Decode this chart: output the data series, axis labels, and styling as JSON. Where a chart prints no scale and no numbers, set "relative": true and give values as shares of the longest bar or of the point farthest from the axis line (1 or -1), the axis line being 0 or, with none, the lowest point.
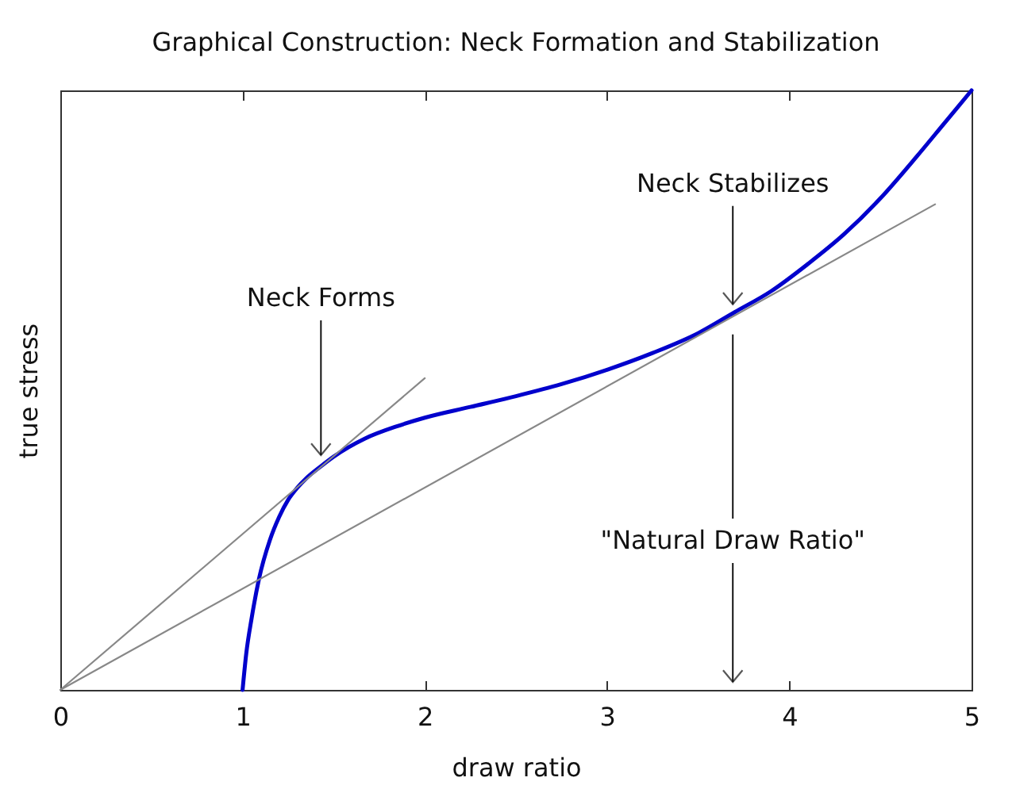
{
  "chart_data": {
    "type": "line",
    "title": "Graphical Construction: Neck Formation and Stabilization",
    "xlabel": "draw ratio",
    "ylabel": "true stress",
    "relative": true,
    "xlim": [
      0,
      5
    ],
    "xticks": [
      0,
      1,
      2,
      3,
      4,
      5
    ],
    "series": [
      {
        "color": "#0000cc",
        "x": [
          1.0,
          1.02,
          1.05,
          1.09,
          1.15,
          1.2,
          1.25,
          1.3,
          1.35,
          1.43,
          1.5,
          1.67,
          1.85,
          2.0,
          2.25,
          2.5,
          2.75,
          3.0,
          3.25,
          3.5,
          3.7,
          3.9,
          4.1,
          4.3,
          4.5,
          4.7,
          4.85,
          5.0
        ],
        "values": [
          0,
          0.06,
          0.12,
          0.185,
          0.25,
          0.288,
          0.317,
          0.337,
          0.353,
          0.373,
          0.389,
          0.419,
          0.44,
          0.454,
          0.472,
          0.49,
          0.51,
          0.534,
          0.562,
          0.595,
          0.63,
          0.665,
          0.71,
          0.76,
          0.82,
          0.89,
          0.945,
          1.0
        ]
      },
      {
        "color": "#888888",
        "x": [
          0,
          2
        ],
        "values": [
          0,
          0.52
        ]
      },
      {
        "color": "#888888",
        "x": [
          0,
          4.8
        ],
        "values": [
          0,
          0.81
        ]
      }
    ],
    "annotations": [
      {
        "text": "Neck Forms",
        "x": 1.43,
        "y": 0.373
      },
      {
        "text": "Neck Stabilizes",
        "x": 3.69,
        "y": 0.63
      },
      "\"Natural Draw Ratio\""
    ]
  }
}
